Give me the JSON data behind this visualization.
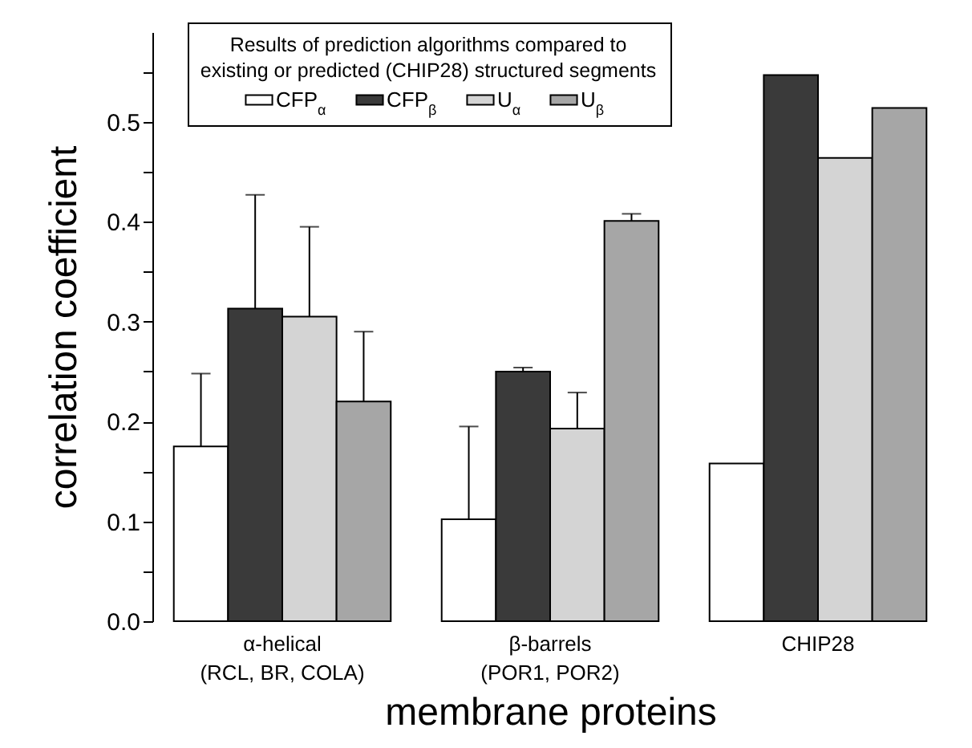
{
  "chart_data": {
    "type": "bar",
    "legend_title": "Results of prediction algorithms compared to existing or predicted (CHIP28) structured segments",
    "xlabel": "membrane proteins",
    "ylabel": "correlation coefficient",
    "categories": [
      "α-helical\n(RCL, BR, COLA)",
      "β-barrels\n(POR1, POR2)",
      "CHIP28"
    ],
    "series": [
      {
        "name": "CFP$_{α}$",
        "color": "#ffffff",
        "values": [
          0.175,
          0.102,
          0.158
        ],
        "errors": [
          [
            0.175,
            0.248
          ],
          [
            0.102,
            0.195
          ],
          null
        ]
      },
      {
        "name": "CFP$_{β}$",
        "color": "#3a3a3a",
        "values": [
          0.313,
          0.25,
          0.547
        ],
        "errors": [
          [
            0.313,
            0.427
          ],
          [
            0.25,
            0.254
          ],
          null
        ]
      },
      {
        "name": "U$_{α}$",
        "color": "#d4d4d4",
        "values": [
          0.305,
          0.193,
          0.464
        ],
        "errors": [
          [
            0.305,
            0.395
          ],
          [
            0.193,
            0.229
          ],
          null
        ]
      },
      {
        "name": "U$_{β}$",
        "color": "#a6a6a6",
        "values": [
          0.22,
          0.401,
          0.514
        ],
        "errors": [
          [
            0.22,
            0.29
          ],
          [
            0.401,
            0.408
          ],
          null
        ]
      }
    ],
    "ylim": [
      0,
      0.59
    ],
    "yticks": [
      {
        "value": 0,
        "label": "0.0"
      },
      {
        "value": 0.05,
        "label": null
      },
      0.1,
      {
        "value": 0.15,
        "label": null
      },
      0.2,
      {
        "value": 0.25,
        "label": null
      },
      0.3,
      {
        "value": 0.35,
        "label": null
      },
      0.4,
      {
        "value": 0.45,
        "label": null
      },
      0.5,
      {
        "value": 0.55,
        "label": null
      }
    ],
    "legend": "top"
  }
}
